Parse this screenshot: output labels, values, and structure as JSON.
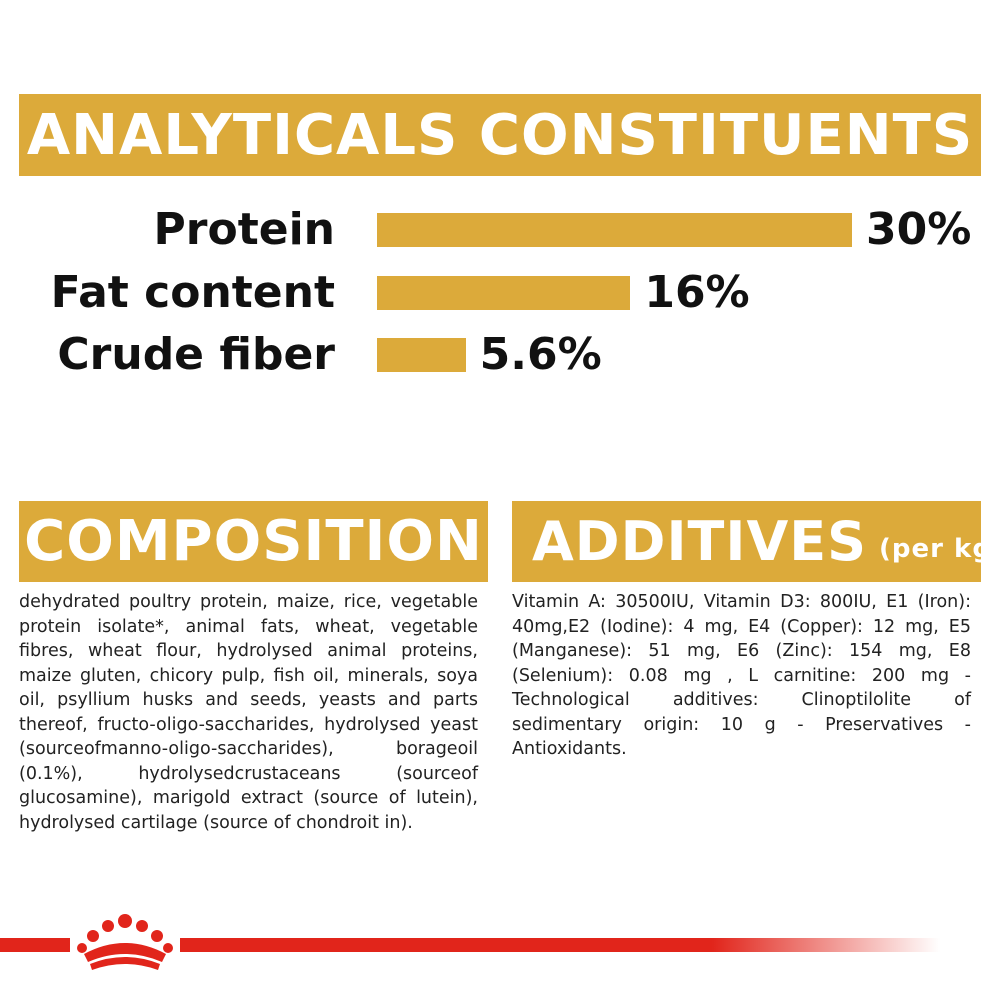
{
  "analytics": {
    "title": "ANALYTICALS CONSTITUENTS",
    "rows": [
      {
        "label": "Protein",
        "value_text": "30%",
        "value": 30
      },
      {
        "label": "Fat content",
        "value_text": "16%",
        "value": 16
      },
      {
        "label": "Crude fiber",
        "value_text": "5.6%",
        "value": 5.6
      }
    ]
  },
  "composition": {
    "title": "COMPOSITION",
    "text": "dehydrated poultry protein, maize, rice, vegetable protein isolate*, animal fats, wheat, vegetable fibres, wheat flour, hydrolysed animal proteins, maize gluten, chicory pulp, fish oil, minerals, soya oil, psyllium husks and seeds, yeasts and parts thereof, fructo-oligo-saccharides, hydrolysed yeast (sourceofmanno-oligo-saccharides), borageoil (0.1%), hydrolysedcrustaceans (sourceof glucosamine), marigold extract (source of lutein), hydrolysed cartilage (source of chondroit in)."
  },
  "additives": {
    "title": "ADDITIVES",
    "title_suffix": "(per kg)",
    "text": "Vitamin A: 30500IU, Vitamin D3: 800IU, E1 (Iron): 40mg,E2 (Iodine): 4 mg, E4 (Copper): 12 mg, E5 (Manganese): 51 mg, E6 (Zinc): 154 mg, E8 (Selenium): 0.08 mg , L carnitine: 200 mg - Technological additives: Clinoptilolite of sedimentary origin: 10 g - Preservatives - Antioxidants."
  },
  "colors": {
    "accent_gold": "#DCAA3A",
    "brand_red": "#E1251B"
  },
  "logo": {
    "icon": "crown-icon"
  }
}
